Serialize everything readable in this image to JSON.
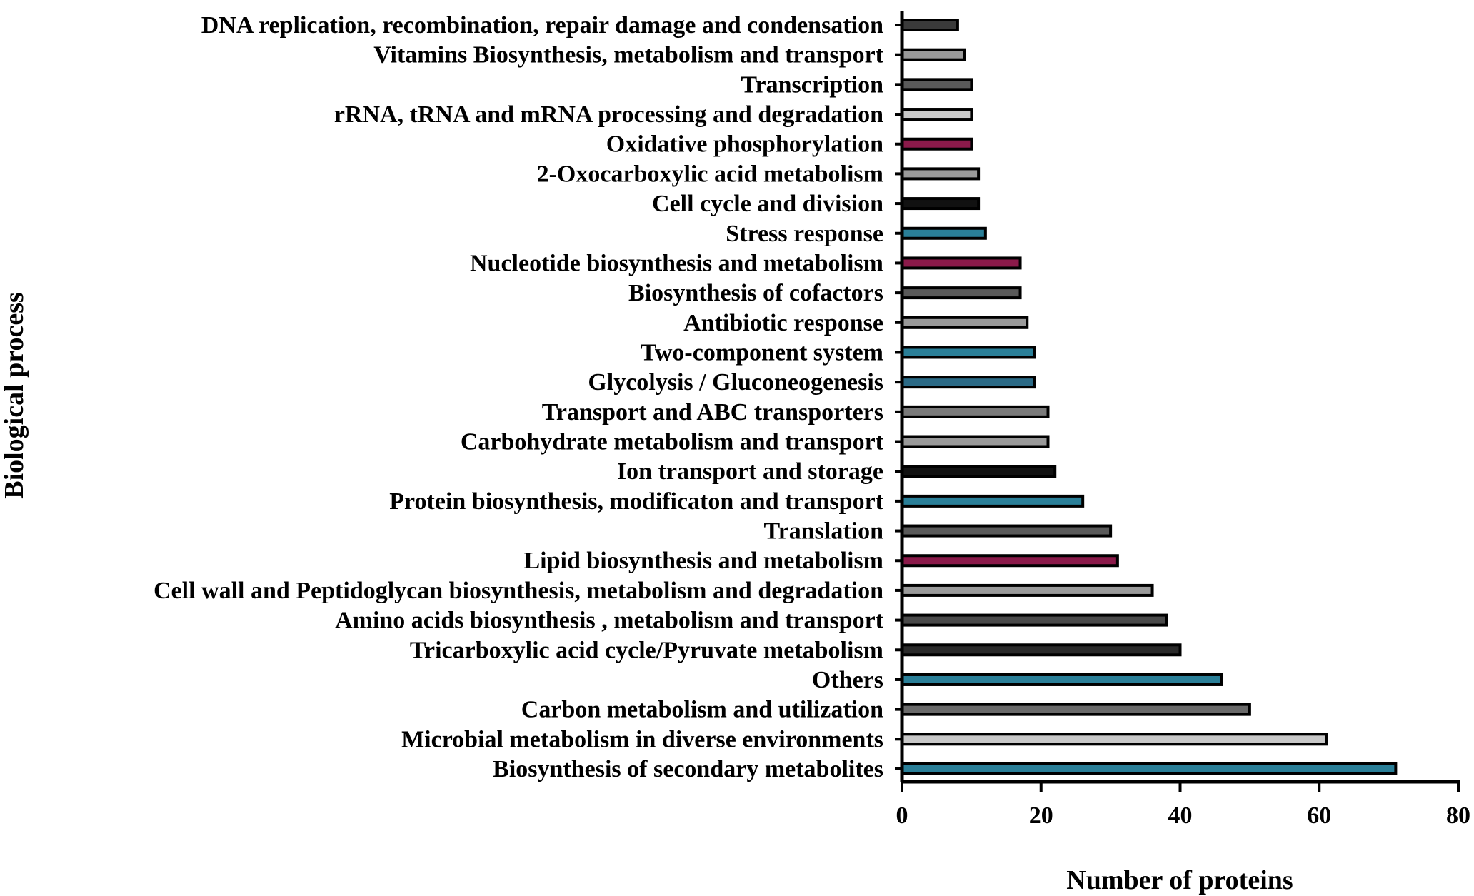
{
  "chart_data": {
    "type": "bar",
    "orientation": "horizontal",
    "xlabel": "Number of proteins",
    "ylabel": "Biological process",
    "xlim": [
      0,
      80
    ],
    "xticks": [
      0,
      20,
      40,
      60,
      80
    ],
    "grid": false,
    "legend": "none",
    "categories": [
      "DNA replication, recombination, repair damage and condensation",
      "Vitamins Biosynthesis, metabolism and transport",
      "Transcription",
      "rRNA, tRNA and mRNA processing and degradation",
      "Oxidative phosphorylation",
      "2-Oxocarboxylic acid metabolism",
      "Cell cycle and division",
      "Stress response",
      "Nucleotide biosynthesis and metabolism",
      "Biosynthesis of cofactors",
      "Antibiotic response",
      "Two-component system",
      "Glycolysis / Gluconeogenesis",
      "Transport and ABC transporters",
      "Carbohydrate metabolism and transport",
      "Ion transport and storage",
      "Protein biosynthesis, modificaton and transport",
      "Translation",
      "Lipid biosynthesis and metabolism",
      "Cell wall and Peptidoglycan biosynthesis, metabolism and degradation",
      "Amino acids biosynthesis , metabolism and transport",
      "Tricarboxylic acid cycle/Pyruvate metabolism",
      "Others",
      "Carbon metabolism and utilization",
      "Microbial metabolism in diverse environments",
      "Biosynthesis of secondary metabolites"
    ],
    "values": [
      8,
      9,
      10,
      10,
      10,
      11,
      11,
      12,
      17,
      17,
      18,
      19,
      19,
      21,
      21,
      22,
      26,
      30,
      31,
      36,
      38,
      40,
      46,
      50,
      61,
      71
    ],
    "colors": [
      "#3a3a3a",
      "#9a9a9a",
      "#5a5a5a",
      "#c8c8c8",
      "#8b1a4a",
      "#9a9a9a",
      "#111111",
      "#2a7f98",
      "#8b1a4a",
      "#5a5a5a",
      "#9a9a9a",
      "#2a7f98",
      "#2b6a86",
      "#7a7a7a",
      "#9a9a9a",
      "#111111",
      "#2a7f98",
      "#5a5a5a",
      "#8b1a4a",
      "#9a9a9a",
      "#4a4a4a",
      "#2a2a2a",
      "#2a7f98",
      "#6a6a6a",
      "#c8c8c8",
      "#2a7f98"
    ]
  }
}
